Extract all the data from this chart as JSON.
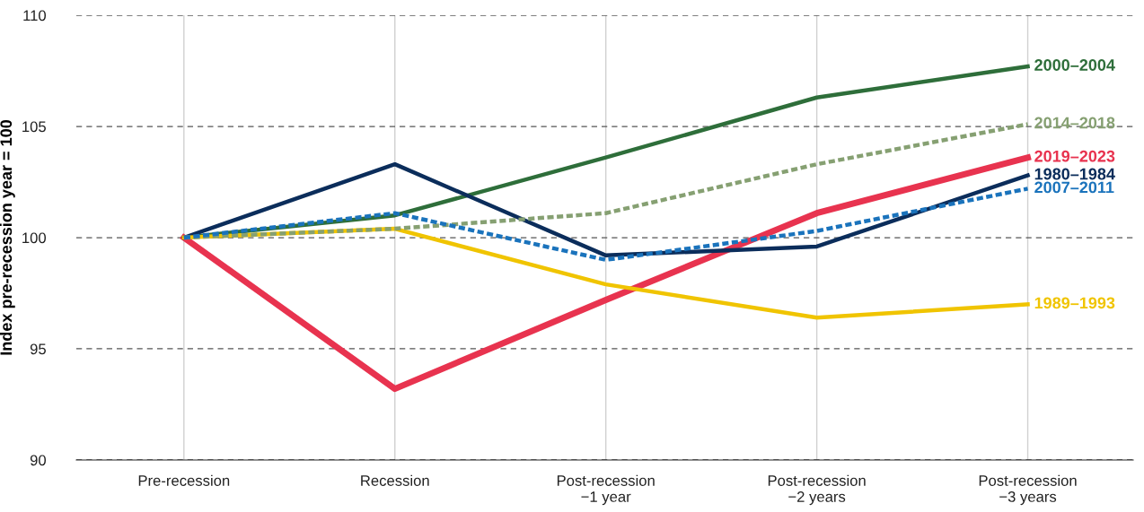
{
  "chart_data": {
    "type": "line",
    "ylabel": "Index pre-recession year = 100",
    "categories": [
      "Pre-recession",
      "Recession",
      "Post-recession\n−1 year",
      "Post-recession\n−2 years",
      "Post-recession\n−3 years"
    ],
    "ylim": [
      90,
      110
    ],
    "yticks": [
      90,
      95,
      100,
      105,
      110
    ],
    "grid": true,
    "legend": false,
    "series": [
      {
        "name": "2000–2004",
        "color": "#2e6e3a",
        "line_style": "solid",
        "values": [
          100,
          101.0,
          103.6,
          106.3,
          107.7
        ]
      },
      {
        "name": "2014–2018",
        "color": "#86a072",
        "line_style": "dashed",
        "values": [
          100,
          100.4,
          101.1,
          103.3,
          105.1
        ]
      },
      {
        "name": "2019–2023",
        "color": "#e8334f",
        "line_style": "solid",
        "values": [
          100,
          93.2,
          97.2,
          101.1,
          103.6
        ]
      },
      {
        "name": "1980–1984",
        "color": "#0b2d5b",
        "line_style": "solid",
        "values": [
          100,
          103.3,
          99.2,
          99.6,
          102.8
        ]
      },
      {
        "name": "2007–2011",
        "color": "#1a73bc",
        "line_style": "dashed",
        "values": [
          100,
          101.1,
          99.0,
          100.3,
          102.2
        ]
      },
      {
        "name": "1989–1993",
        "color": "#f0c400",
        "line_style": "solid",
        "values": [
          100,
          100.4,
          97.9,
          96.4,
          97.0
        ]
      }
    ]
  }
}
